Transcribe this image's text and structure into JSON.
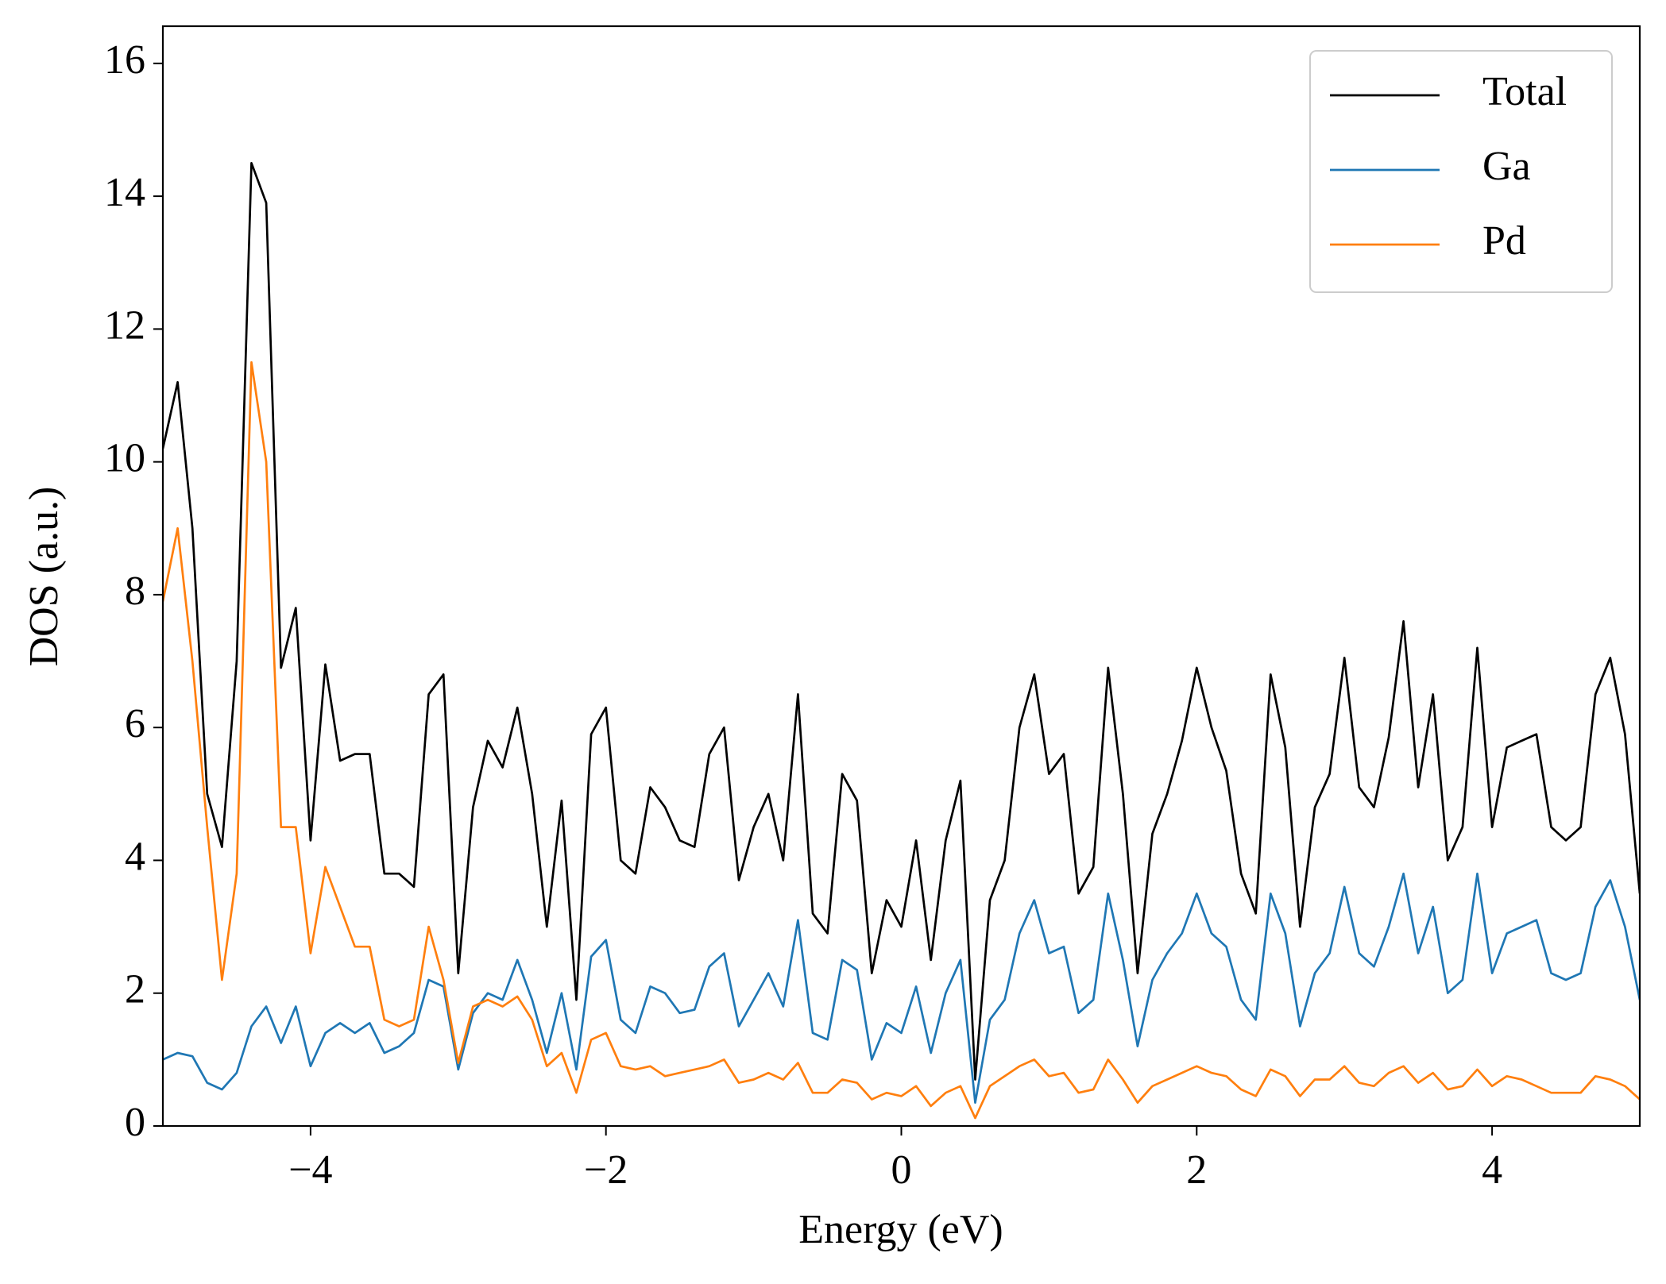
{
  "chart_data": {
    "type": "line",
    "xlabel": "Energy (eV)",
    "ylabel": "DOS (a.u.)",
    "x": [
      -5,
      -4.9,
      -4.8,
      -4.7,
      -4.6,
      -4.5,
      -4.4,
      -4.3,
      -4.2,
      -4.1,
      -4,
      -3.9,
      -3.8,
      -3.7,
      -3.6,
      -3.5,
      -3.4,
      -3.3,
      -3.2,
      -3.1,
      -3,
      -2.9,
      -2.8,
      -2.7,
      -2.6,
      -2.5,
      -2.4,
      -2.3,
      -2.2,
      -2.1,
      -2,
      -1.9,
      -1.8,
      -1.7,
      -1.6,
      -1.5,
      -1.4,
      -1.3,
      -1.2,
      -1.1,
      -1,
      -0.9,
      -0.8,
      -0.7,
      -0.6,
      -0.5,
      -0.4,
      -0.3,
      -0.2,
      -0.1,
      0,
      0.1,
      0.2,
      0.3,
      0.4,
      0.5,
      0.6,
      0.7,
      0.8,
      0.9,
      1,
      1.1,
      1.2,
      1.3,
      1.4,
      1.5,
      1.6,
      1.7,
      1.8,
      1.9,
      2,
      2.1,
      2.2,
      2.3,
      2.4,
      2.5,
      2.6,
      2.7,
      2.8,
      2.9,
      3,
      3.1,
      3.2,
      3.3,
      3.4,
      3.5,
      3.6,
      3.7,
      3.8,
      3.9,
      4,
      4.1,
      4.2,
      4.3,
      4.4,
      4.5,
      4.6,
      4.7,
      4.8,
      4.9,
      5
    ],
    "series": [
      {
        "name": "Total",
        "color": "#000000",
        "values": [
          10.2,
          11.2,
          9.0,
          5.0,
          4.2,
          7.0,
          14.5,
          13.9,
          6.9,
          7.8,
          4.3,
          6.95,
          5.5,
          5.6,
          5.6,
          3.8,
          3.8,
          3.6,
          6.5,
          6.8,
          2.3,
          4.8,
          5.8,
          5.4,
          6.3,
          5.0,
          3.0,
          4.9,
          1.9,
          5.9,
          6.3,
          4.0,
          3.8,
          5.1,
          4.8,
          4.3,
          4.2,
          5.6,
          6.0,
          3.7,
          4.5,
          5.0,
          4.0,
          6.5,
          3.2,
          2.9,
          5.3,
          4.9,
          2.3,
          3.4,
          3.0,
          4.3,
          2.5,
          4.3,
          5.2,
          0.7,
          3.4,
          4.0,
          6.0,
          6.8,
          5.3,
          5.6,
          3.5,
          3.9,
          6.9,
          5.0,
          2.3,
          4.4,
          5.0,
          5.8,
          6.9,
          6.0,
          5.35,
          3.8,
          3.2,
          6.8,
          5.7,
          3.0,
          4.8,
          5.3,
          7.05,
          5.1,
          4.8,
          5.85,
          7.6,
          5.1,
          6.5,
          4.0,
          4.5,
          7.2,
          4.5,
          5.7,
          5.8,
          5.9,
          4.5,
          4.3,
          4.5,
          6.5,
          7.05,
          5.9,
          3.5
        ]
      },
      {
        "name": "Ga",
        "color": "#1f77b4",
        "values": [
          1.0,
          1.1,
          1.05,
          0.65,
          0.55,
          0.8,
          1.5,
          1.8,
          1.25,
          1.8,
          0.9,
          1.4,
          1.55,
          1.4,
          1.55,
          1.1,
          1.2,
          1.4,
          2.2,
          2.1,
          0.85,
          1.7,
          2.0,
          1.9,
          2.5,
          1.9,
          1.1,
          2.0,
          0.85,
          2.55,
          2.8,
          1.6,
          1.4,
          2.1,
          2.0,
          1.7,
          1.75,
          2.4,
          2.6,
          1.5,
          1.9,
          2.3,
          1.8,
          3.1,
          1.4,
          1.3,
          2.5,
          2.35,
          1.0,
          1.55,
          1.4,
          2.1,
          1.1,
          2.0,
          2.5,
          0.35,
          1.6,
          1.9,
          2.9,
          3.4,
          2.6,
          2.7,
          1.7,
          1.9,
          3.5,
          2.5,
          1.2,
          2.2,
          2.6,
          2.9,
          3.5,
          2.9,
          2.7,
          1.9,
          1.6,
          3.5,
          2.9,
          1.5,
          2.3,
          2.6,
          3.6,
          2.6,
          2.4,
          3.0,
          3.8,
          2.6,
          3.3,
          2.0,
          2.2,
          3.8,
          2.3,
          2.9,
          3.0,
          3.1,
          2.3,
          2.2,
          2.3,
          3.3,
          3.7,
          3.0,
          1.9
        ]
      },
      {
        "name": "Pd",
        "color": "#ff7f0e",
        "values": [
          7.9,
          9.0,
          7.0,
          4.5,
          2.2,
          3.8,
          11.5,
          10.0,
          4.5,
          4.5,
          2.6,
          3.9,
          3.3,
          2.7,
          2.7,
          1.6,
          1.5,
          1.6,
          3.0,
          2.2,
          0.95,
          1.8,
          1.9,
          1.8,
          1.95,
          1.6,
          0.9,
          1.1,
          0.5,
          1.3,
          1.4,
          0.9,
          0.85,
          0.9,
          0.75,
          0.8,
          0.85,
          0.9,
          1.0,
          0.65,
          0.7,
          0.8,
          0.7,
          0.95,
          0.5,
          0.5,
          0.7,
          0.65,
          0.4,
          0.5,
          0.45,
          0.6,
          0.3,
          0.5,
          0.6,
          0.12,
          0.6,
          0.75,
          0.9,
          1.0,
          0.75,
          0.8,
          0.5,
          0.55,
          1.0,
          0.7,
          0.35,
          0.6,
          0.7,
          0.8,
          0.9,
          0.8,
          0.75,
          0.55,
          0.45,
          0.85,
          0.75,
          0.45,
          0.7,
          0.7,
          0.9,
          0.65,
          0.6,
          0.8,
          0.9,
          0.65,
          0.8,
          0.55,
          0.6,
          0.85,
          0.6,
          0.75,
          0.7,
          0.6,
          0.5,
          0.5,
          0.5,
          0.75,
          0.7,
          0.6,
          0.4
        ]
      }
    ],
    "xlim": [
      -5,
      5
    ],
    "ylim": [
      0,
      16.56
    ],
    "xticks": [
      {
        "value": -4,
        "label": "−4"
      },
      {
        "value": -2,
        "label": "−2"
      },
      0,
      2,
      4
    ],
    "yticks": [
      0,
      2,
      4,
      6,
      8,
      10,
      12,
      14,
      16
    ],
    "legend": "upper right"
  }
}
